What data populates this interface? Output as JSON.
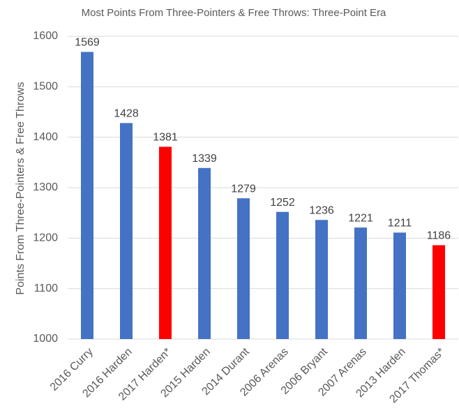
{
  "chart_data": {
    "type": "bar",
    "title": "Most Points From Three-Pointers & Free Throws: Three-Point Era",
    "y_label": "Points From Three-Pointers & Free Throws",
    "categories": [
      "2016 Curry",
      "2016 Harden",
      "2017 Harden*",
      "2015 Harden",
      "2014 Durant",
      "2006 Arenas",
      "2006 Bryant",
      "2007 Arenas",
      "2013 Harden",
      "2017 Thomas*"
    ],
    "values": [
      1569,
      1428,
      1381,
      1339,
      1279,
      1252,
      1236,
      1221,
      1211,
      1186
    ],
    "colors": [
      "#4472c4",
      "#4472c4",
      "#ff0000",
      "#4472c4",
      "#4472c4",
      "#4472c4",
      "#4472c4",
      "#4472c4",
      "#4472c4",
      "#ff0000"
    ],
    "ylim": [
      1000,
      1600
    ],
    "yticks": [
      1000,
      1100,
      1200,
      1300,
      1400,
      1500,
      1600
    ],
    "grid": true
  }
}
